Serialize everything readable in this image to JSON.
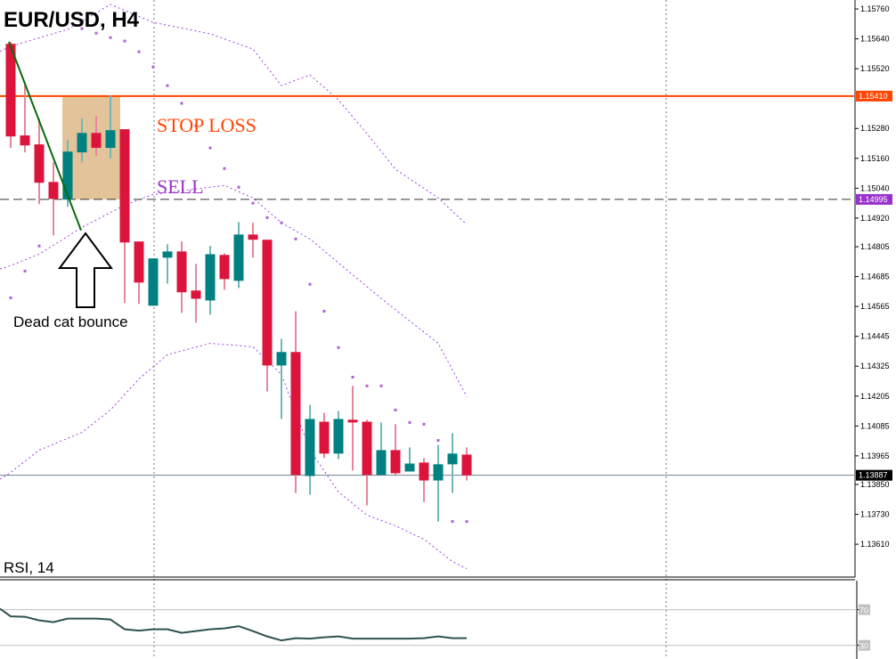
{
  "chart_data": {
    "type": "candlestick",
    "title": "EUR/USD, H4",
    "symbol": "EUR/USD",
    "timeframe": "H4",
    "ylim": [
      1.13478,
      1.15796
    ],
    "y_ticks": [
      "1.15760",
      "1.15640",
      "1.15520",
      "1.15280",
      "1.15160",
      "1.15040",
      "1.14920",
      "1.14805",
      "1.14685",
      "1.14565",
      "1.14445",
      "1.14325",
      "1.14205",
      "1.14085",
      "1.13965",
      "1.13850",
      "1.13730",
      "1.13610"
    ],
    "candles": [
      {
        "o": 1.1562,
        "h": 1.15628,
        "l": 1.15202,
        "c": 1.15248
      },
      {
        "o": 1.15252,
        "h": 1.15466,
        "l": 1.15184,
        "c": 1.15212
      },
      {
        "o": 1.15216,
        "h": 1.1532,
        "l": 1.14976,
        "c": 1.15062
      },
      {
        "o": 1.15065,
        "h": 1.15144,
        "l": 1.14851,
        "c": 1.14997
      },
      {
        "o": 1.14994,
        "h": 1.15234,
        "l": 1.14965,
        "c": 1.15187
      },
      {
        "o": 1.15184,
        "h": 1.1532,
        "l": 1.15144,
        "c": 1.15262
      },
      {
        "o": 1.15262,
        "h": 1.1533,
        "l": 1.15169,
        "c": 1.15202
      },
      {
        "o": 1.15202,
        "h": 1.15413,
        "l": 1.15159,
        "c": 1.15273
      },
      {
        "o": 1.15277,
        "h": 1.15277,
        "l": 1.14579,
        "c": 1.14822
      },
      {
        "o": 1.14826,
        "h": 1.14826,
        "l": 1.14575,
        "c": 1.14661
      },
      {
        "o": 1.14568,
        "h": 1.14758,
        "l": 1.14568,
        "c": 1.14758
      },
      {
        "o": 1.14761,
        "h": 1.14815,
        "l": 1.14657,
        "c": 1.14786
      },
      {
        "o": 1.14786,
        "h": 1.14826,
        "l": 1.14539,
        "c": 1.14622
      },
      {
        "o": 1.14629,
        "h": 1.14736,
        "l": 1.145,
        "c": 1.14596
      },
      {
        "o": 1.14589,
        "h": 1.14808,
        "l": 1.14532,
        "c": 1.14775
      },
      {
        "o": 1.14772,
        "h": 1.14779,
        "l": 1.14632,
        "c": 1.14675
      },
      {
        "o": 1.14668,
        "h": 1.14904,
        "l": 1.14639,
        "c": 1.14854
      },
      {
        "o": 1.14854,
        "h": 1.14901,
        "l": 1.14761,
        "c": 1.14833
      },
      {
        "o": 1.14833,
        "h": 1.14833,
        "l": 1.14224,
        "c": 1.14328
      },
      {
        "o": 1.14328,
        "h": 1.14435,
        "l": 1.14113,
        "c": 1.14382
      },
      {
        "o": 1.14382,
        "h": 1.14546,
        "l": 1.13816,
        "c": 1.13888
      },
      {
        "o": 1.13884,
        "h": 1.1417,
        "l": 1.13809,
        "c": 1.14113
      },
      {
        "o": 1.14102,
        "h": 1.14138,
        "l": 1.13956,
        "c": 1.13974
      },
      {
        "o": 1.13974,
        "h": 1.14145,
        "l": 1.13952,
        "c": 1.14113
      },
      {
        "o": 1.1411,
        "h": 1.14246,
        "l": 1.13906,
        "c": 1.14099
      },
      {
        "o": 1.14102,
        "h": 1.1411,
        "l": 1.13766,
        "c": 1.13888
      },
      {
        "o": 1.13888,
        "h": 1.14099,
        "l": 1.13888,
        "c": 1.13988
      },
      {
        "o": 1.13988,
        "h": 1.14092,
        "l": 1.13884,
        "c": 1.13895
      },
      {
        "o": 1.13902,
        "h": 1.13999,
        "l": 1.13902,
        "c": 1.13934
      },
      {
        "o": 1.13938,
        "h": 1.13956,
        "l": 1.1378,
        "c": 1.13866
      },
      {
        "o": 1.13866,
        "h": 1.14009,
        "l": 1.13701,
        "c": 1.13931
      },
      {
        "o": 1.13931,
        "h": 1.14056,
        "l": 1.13816,
        "c": 1.13974
      },
      {
        "o": 1.1397,
        "h": 1.13999,
        "l": 1.13866,
        "c": 1.13887
      }
    ],
    "bollinger": {
      "upper": [
        [
          0,
          1.1561
        ],
        [
          4,
          1.15678
        ],
        [
          7,
          1.15778
        ],
        [
          10,
          1.15706
        ],
        [
          14,
          1.1566
        ],
        [
          17,
          1.15599
        ],
        [
          19,
          1.15452
        ],
        [
          21,
          1.15495
        ],
        [
          23,
          1.15395
        ],
        [
          25,
          1.15259
        ],
        [
          27,
          1.15116
        ],
        [
          30,
          1.15001
        ],
        [
          32,
          1.14894
        ]
      ],
      "middle": [
        [
          0,
          1.14729
        ],
        [
          2,
          1.14775
        ],
        [
          5,
          1.14883
        ],
        [
          8,
          1.14972
        ],
        [
          10,
          1.15015
        ],
        [
          13,
          1.15037
        ],
        [
          15,
          1.15051
        ],
        [
          17,
          1.15001
        ],
        [
          19,
          1.14901
        ],
        [
          21,
          1.14836
        ],
        [
          23,
          1.1474
        ],
        [
          26,
          1.14597
        ],
        [
          28,
          1.14507
        ],
        [
          30,
          1.14417
        ],
        [
          32,
          1.14203
        ]
      ],
      "lower": [
        [
          0,
          1.13898
        ],
        [
          2,
          1.13988
        ],
        [
          5,
          1.14059
        ],
        [
          7,
          1.14149
        ],
        [
          9,
          1.14274
        ],
        [
          11,
          1.14371
        ],
        [
          14,
          1.14417
        ],
        [
          17,
          1.14403
        ],
        [
          19,
          1.14292
        ],
        [
          21,
          1.13988
        ],
        [
          23,
          1.1382
        ],
        [
          25,
          1.13727
        ],
        [
          27,
          1.13684
        ],
        [
          29,
          1.1363
        ],
        [
          31,
          1.1354
        ],
        [
          32,
          1.13512
        ]
      ]
    },
    "parabolic_sar": [
      [
        0,
        1.146
      ],
      [
        1,
        1.14707
      ],
      [
        2,
        1.14808
      ],
      [
        5,
        1.15681
      ],
      [
        6,
        1.15663
      ],
      [
        7,
        1.15645
      ],
      [
        8,
        1.15631
      ],
      [
        9,
        1.15588
      ],
      [
        10,
        1.15527
      ],
      [
        11,
        1.15452
      ],
      [
        12,
        1.15381
      ],
      [
        13,
        1.15291
      ],
      [
        14,
        1.15202
      ],
      [
        15,
        1.15119
      ],
      [
        16,
        1.15044
      ],
      [
        17,
        1.1498
      ],
      [
        18,
        1.14922
      ],
      [
        19,
        1.14901
      ],
      [
        20,
        1.14836
      ],
      [
        21,
        1.14654
      ],
      [
        22,
        1.14546
      ],
      [
        23,
        1.144
      ],
      [
        24,
        1.14281
      ],
      [
        25,
        1.14246
      ],
      [
        26,
        1.14246
      ],
      [
        27,
        1.14149
      ],
      [
        28,
        1.14099
      ],
      [
        29,
        1.14092
      ],
      [
        30,
        1.14027
      ],
      [
        31,
        1.13701
      ],
      [
        32,
        1.13701
      ]
    ],
    "trendline": [
      [
        0,
        1.15628
      ],
      [
        5,
        1.14871
      ]
    ],
    "levels": {
      "stop_loss": {
        "price": 1.1541,
        "label": "1.15410",
        "text": "STOP LOSS",
        "color": "#ff4500"
      },
      "sell": {
        "price": 1.14995,
        "label": "1.14995",
        "text": "SELL",
        "color": "#9932cc"
      },
      "current": {
        "price": 1.13887,
        "label": "1.13887",
        "color": "#000000"
      }
    },
    "zone": {
      "from_index": 4,
      "to_index": 8,
      "top": 1.1541,
      "bottom": 1.14995,
      "color": "#deb887"
    },
    "annotation": {
      "text": "Dead cat bounce",
      "index": 4
    },
    "rsi": {
      "title": "RSI, 14",
      "period": 14,
      "ylim": [
        14.7,
        102.5
      ],
      "levels": [
        "70",
        "30"
      ],
      "values": [
        62.5,
        62,
        58,
        56,
        60,
        60,
        60,
        59,
        48,
        46.5,
        48,
        48,
        44,
        46,
        48,
        49,
        51.5,
        46,
        40,
        35.5,
        38,
        37.5,
        39,
        40,
        37.5,
        37.5,
        37.5,
        37.5,
        37.5,
        38,
        40,
        38,
        38
      ]
    },
    "colors": {
      "bull": "#008080",
      "bear": "#dc143c",
      "bull_wick": "#70b8b8",
      "bear_wick": "#e8879b",
      "band": "#a040e0",
      "sar": "#b060d8",
      "rsi_line": "#2f5050"
    }
  }
}
